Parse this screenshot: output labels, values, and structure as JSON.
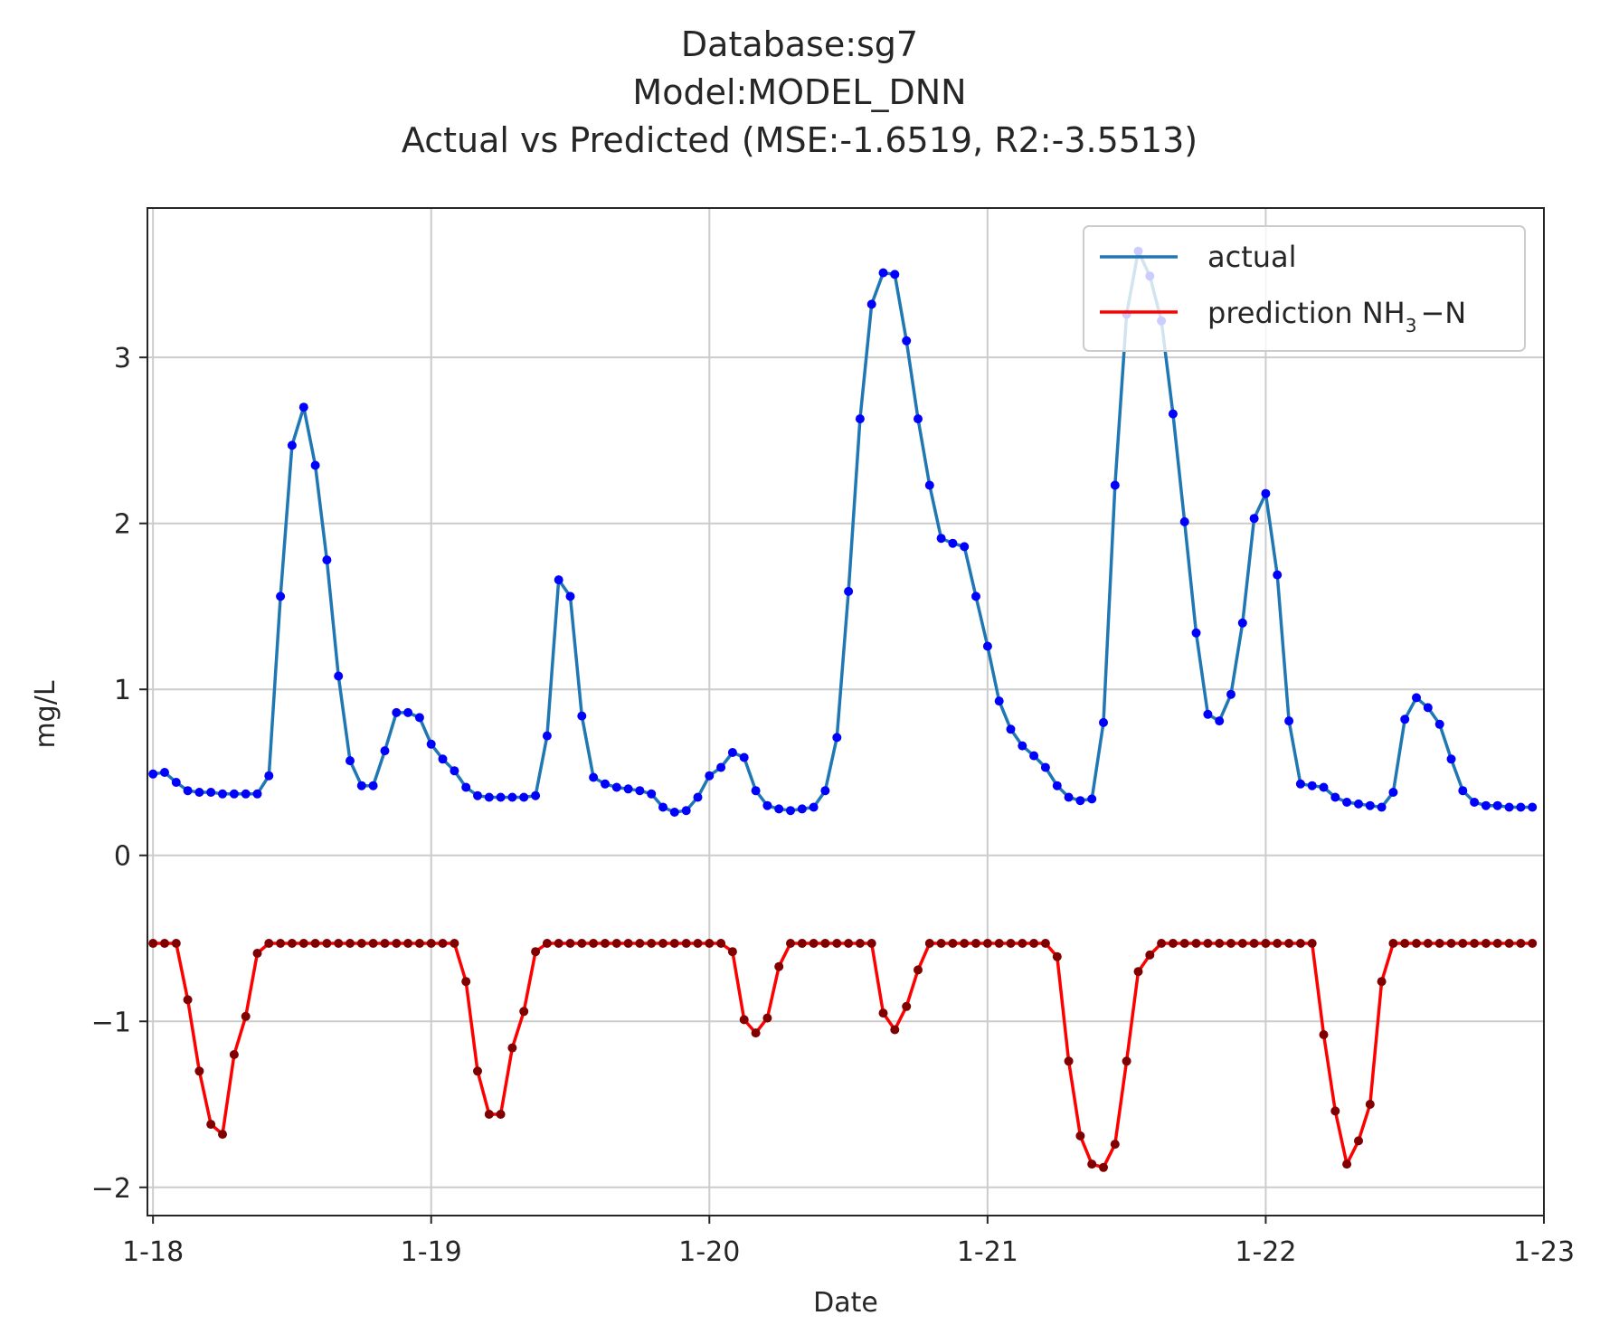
{
  "chart_data": {
    "type": "line",
    "title_lines": [
      "Database:sg7",
      "Model:MODEL_DNN",
      "Actual vs Predicted (MSE:-1.6519, R2:-3.5513)"
    ],
    "xlabel": "Date",
    "ylabel": "mg/L",
    "x_unit": "days from 1-18",
    "x_ticks": [
      0,
      1,
      2,
      3,
      4,
      5
    ],
    "x_tick_labels": [
      "1-18",
      "1-19",
      "1-20",
      "1-21",
      "1-22",
      "1-23"
    ],
    "y_ticks": [
      -2,
      -1,
      0,
      1,
      2,
      3
    ],
    "y_tick_labels": [
      "−2",
      "−1",
      "0",
      "1",
      "2",
      "3"
    ],
    "xlim": [
      -0.02,
      5.0
    ],
    "ylim": [
      -2.17,
      3.9
    ],
    "grid": true,
    "legend_position": "top-right",
    "series": [
      {
        "name": "actual",
        "color": "#1f77b4",
        "marker_color": "#0000ff",
        "values": [
          0.49,
          0.5,
          0.44,
          0.39,
          0.38,
          0.38,
          0.37,
          0.37,
          0.37,
          0.37,
          0.48,
          1.56,
          2.47,
          2.7,
          2.35,
          1.78,
          1.08,
          0.57,
          0.42,
          0.42,
          0.63,
          0.86,
          0.86,
          0.83,
          0.67,
          0.58,
          0.51,
          0.41,
          0.36,
          0.35,
          0.35,
          0.35,
          0.35,
          0.36,
          0.72,
          1.66,
          1.56,
          0.84,
          0.47,
          0.43,
          0.41,
          0.4,
          0.39,
          0.37,
          0.29,
          0.26,
          0.27,
          0.35,
          0.48,
          0.53,
          0.62,
          0.59,
          0.39,
          0.3,
          0.28,
          0.27,
          0.28,
          0.29,
          0.39,
          0.71,
          1.59,
          2.63,
          3.32,
          3.51,
          3.5,
          3.1,
          2.63,
          2.23,
          1.91,
          1.88,
          1.86,
          1.56,
          1.26,
          0.93,
          0.76,
          0.66,
          0.6,
          0.53,
          0.42,
          0.35,
          0.33,
          0.34,
          0.8,
          2.23,
          3.26,
          3.64,
          3.49,
          3.22,
          2.66,
          2.01,
          1.34,
          0.85,
          0.81,
          0.97,
          1.4,
          2.03,
          2.18,
          1.69,
          0.81,
          0.43,
          0.42,
          0.41,
          0.35,
          0.32,
          0.31,
          0.3,
          0.29,
          0.38,
          0.82,
          0.95,
          0.89,
          0.79,
          0.58,
          0.39,
          0.32,
          0.3,
          0.3,
          0.29,
          0.29,
          0.29
        ]
      },
      {
        "name": "prediction NH₃−N",
        "name_main": "prediction NH",
        "name_sub": "3",
        "name_tail": "−N",
        "color": "#ff0000",
        "marker_color": "#800000",
        "values": [
          -0.53,
          -0.53,
          -0.53,
          -0.87,
          -1.3,
          -1.62,
          -1.68,
          -1.2,
          -0.97,
          -0.59,
          -0.53,
          -0.53,
          -0.53,
          -0.53,
          -0.53,
          -0.53,
          -0.53,
          -0.53,
          -0.53,
          -0.53,
          -0.53,
          -0.53,
          -0.53,
          -0.53,
          -0.53,
          -0.53,
          -0.53,
          -0.76,
          -1.3,
          -1.56,
          -1.56,
          -1.16,
          -0.94,
          -0.58,
          -0.53,
          -0.53,
          -0.53,
          -0.53,
          -0.53,
          -0.53,
          -0.53,
          -0.53,
          -0.53,
          -0.53,
          -0.53,
          -0.53,
          -0.53,
          -0.53,
          -0.53,
          -0.53,
          -0.58,
          -0.99,
          -1.07,
          -0.98,
          -0.67,
          -0.53,
          -0.53,
          -0.53,
          -0.53,
          -0.53,
          -0.53,
          -0.53,
          -0.53,
          -0.95,
          -1.05,
          -0.91,
          -0.69,
          -0.53,
          -0.53,
          -0.53,
          -0.53,
          -0.53,
          -0.53,
          -0.53,
          -0.53,
          -0.53,
          -0.53,
          -0.53,
          -0.61,
          -1.24,
          -1.69,
          -1.86,
          -1.88,
          -1.74,
          -1.24,
          -0.7,
          -0.6,
          -0.53,
          -0.53,
          -0.53,
          -0.53,
          -0.53,
          -0.53,
          -0.53,
          -0.53,
          -0.53,
          -0.53,
          -0.53,
          -0.53,
          -0.53,
          -0.53,
          -1.08,
          -1.54,
          -1.86,
          -1.72,
          -1.5,
          -0.76,
          -0.53,
          -0.53,
          -0.53,
          -0.53,
          -0.53,
          -0.53,
          -0.53,
          -0.53,
          -0.53,
          -0.53,
          -0.53,
          -0.53,
          -0.53
        ]
      }
    ]
  }
}
